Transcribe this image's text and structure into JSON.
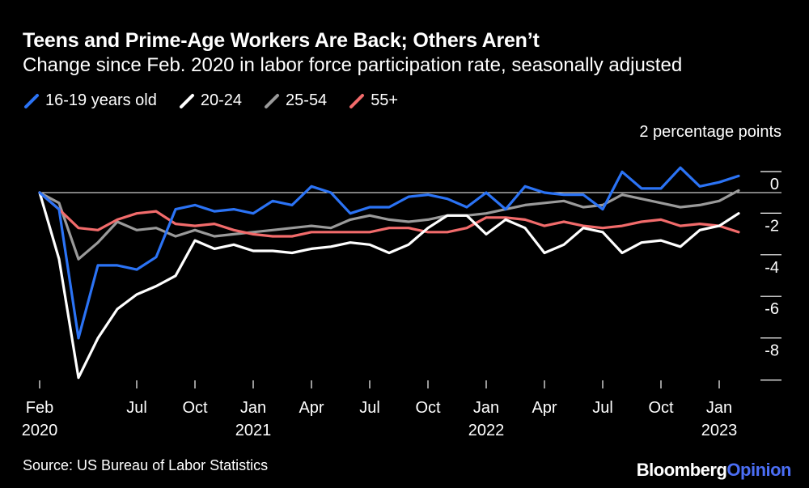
{
  "title": "Teens and Prime-Age Workers Are Back; Others Aren’t",
  "subtitle": "Change since Feb. 2020 in labor force participation rate, seasonally adjusted",
  "source": "Source: US Bureau of Labor Statistics",
  "brand": {
    "part1": "Bloomberg",
    "part2": "Opinion"
  },
  "colors": {
    "background": "#000000",
    "s1": "#2b73f5",
    "s2": "#ffffff",
    "s3": "#9a9a9a",
    "s4": "#f26b6b",
    "brand_accent": "#4b6ef5"
  },
  "chart_data": {
    "type": "line",
    "title": "Teens and Prime-Age Workers Are Back; Others Aren’t",
    "ylabel": "2 percentage points",
    "ylim": [
      -9,
      1
    ],
    "yticks": [
      0,
      -2,
      -4,
      -6,
      -8
    ],
    "ytick_labels": [
      "0",
      "-2",
      "-4",
      "-6",
      "-8"
    ],
    "xtick_labels": [
      {
        "index": 0,
        "line1": "Feb",
        "line2": "2020"
      },
      {
        "index": 5,
        "line1": "Jul",
        "line2": ""
      },
      {
        "index": 8,
        "line1": "Oct",
        "line2": ""
      },
      {
        "index": 11,
        "line1": "Jan",
        "line2": "2021"
      },
      {
        "index": 14,
        "line1": "Apr",
        "line2": ""
      },
      {
        "index": 17,
        "line1": "Jul",
        "line2": ""
      },
      {
        "index": 20,
        "line1": "Oct",
        "line2": ""
      },
      {
        "index": 23,
        "line1": "Jan",
        "line2": "2022"
      },
      {
        "index": 26,
        "line1": "Apr",
        "line2": ""
      },
      {
        "index": 29,
        "line1": "Jul",
        "line2": ""
      },
      {
        "index": 32,
        "line1": "Oct",
        "line2": ""
      },
      {
        "index": 35,
        "line1": "Jan",
        "line2": "2023"
      }
    ],
    "series": [
      {
        "name": "16-19 years old",
        "color": "#2b73f5",
        "values": [
          0,
          -0.8,
          -7.0,
          -3.5,
          -3.5,
          -3.7,
          -3.1,
          -0.8,
          -0.6,
          -0.9,
          -0.8,
          -1.0,
          -0.4,
          -0.6,
          0.3,
          0.0,
          -1.0,
          -0.7,
          -0.7,
          -0.2,
          -0.1,
          -0.3,
          -0.7,
          0.0,
          -0.8,
          0.3,
          0.0,
          -0.1,
          -0.1,
          -0.8,
          1.0,
          0.2,
          0.2,
          1.2,
          0.3,
          0.5,
          0.8
        ]
      },
      {
        "name": "20-24",
        "color": "#ffffff",
        "values": [
          0,
          -3.2,
          -8.9,
          -7.0,
          -5.6,
          -4.9,
          -4.5,
          -4.0,
          -2.3,
          -2.7,
          -2.5,
          -2.8,
          -2.8,
          -2.9,
          -2.7,
          -2.6,
          -2.4,
          -2.5,
          -2.9,
          -2.5,
          -1.7,
          -1.1,
          -1.1,
          -2.0,
          -1.3,
          -1.7,
          -2.9,
          -2.5,
          -1.7,
          -1.9,
          -2.9,
          -2.4,
          -2.3,
          -2.6,
          -1.8,
          -1.6,
          -1.0
        ]
      },
      {
        "name": "25-54",
        "color": "#9a9a9a",
        "values": [
          0,
          -0.5,
          -3.2,
          -2.4,
          -1.4,
          -1.8,
          -1.7,
          -2.1,
          -1.8,
          -2.1,
          -2.0,
          -1.9,
          -1.8,
          -1.7,
          -1.6,
          -1.7,
          -1.3,
          -1.1,
          -1.3,
          -1.4,
          -1.3,
          -1.1,
          -1.1,
          -1.0,
          -0.8,
          -0.6,
          -0.5,
          -0.4,
          -0.7,
          -0.6,
          -0.1,
          -0.3,
          -0.5,
          -0.7,
          -0.6,
          -0.4,
          0.1
        ]
      },
      {
        "name": "55+",
        "color": "#f26b6b",
        "values": [
          0,
          -0.8,
          -1.7,
          -1.8,
          -1.3,
          -1.0,
          -0.9,
          -1.5,
          -1.6,
          -1.5,
          -1.8,
          -2.0,
          -2.1,
          -2.1,
          -1.9,
          -1.9,
          -1.9,
          -1.9,
          -1.7,
          -1.7,
          -1.9,
          -1.9,
          -1.7,
          -1.2,
          -1.2,
          -1.3,
          -1.6,
          -1.4,
          -1.6,
          -1.7,
          -1.6,
          -1.4,
          -1.3,
          -1.6,
          -1.5,
          -1.6,
          -1.9
        ]
      }
    ]
  }
}
